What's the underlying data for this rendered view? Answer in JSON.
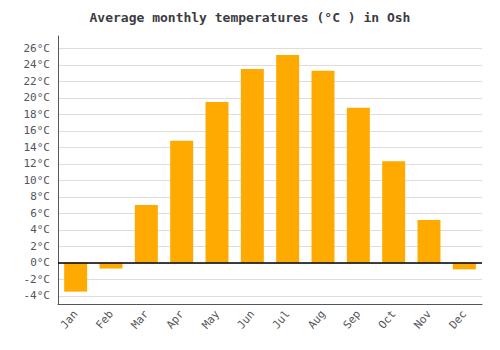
{
  "chart_data": {
    "type": "bar",
    "title": "Average monthly temperatures (°C ) in Osh",
    "categories": [
      "Jan",
      "Feb",
      "Mar",
      "Apr",
      "May",
      "Jun",
      "Jul",
      "Aug",
      "Sep",
      "Oct",
      "Nov",
      "Dec"
    ],
    "values": [
      -3.5,
      -0.7,
      7.0,
      14.8,
      19.5,
      23.5,
      25.2,
      23.3,
      18.8,
      12.3,
      5.2,
      -0.8
    ],
    "color": "#FFAA00",
    "ylim": [
      -5.0,
      27.5
    ],
    "yticks": [
      {
        "value": -4,
        "label": "-4°C"
      },
      {
        "value": -2,
        "label": "-2°C"
      },
      {
        "value": 0,
        "label": "0°C"
      },
      {
        "value": 2,
        "label": "2°C"
      },
      {
        "value": 4,
        "label": "4°C"
      },
      {
        "value": 6,
        "label": "6°C"
      },
      {
        "value": 8,
        "label": "8°C"
      },
      {
        "value": 10,
        "label": "10°C"
      },
      {
        "value": 12,
        "label": "12°C"
      },
      {
        "value": 14,
        "label": "14°C"
      },
      {
        "value": 16,
        "label": "16°C"
      },
      {
        "value": 18,
        "label": "18°C"
      },
      {
        "value": 20,
        "label": "20°C"
      },
      {
        "value": 22,
        "label": "22°C"
      },
      {
        "value": 24,
        "label": "24°C"
      },
      {
        "value": 26,
        "label": "26°C"
      }
    ],
    "grid": true
  }
}
